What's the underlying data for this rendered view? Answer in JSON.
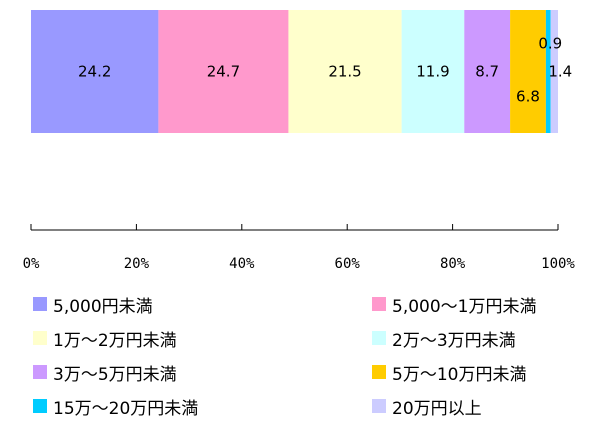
{
  "chart_data": {
    "type": "bar",
    "orientation": "horizontal-stacked-100",
    "series": [
      {
        "name": "5,000円未満",
        "value": 24.2,
        "color": "#9999FF"
      },
      {
        "name": "5,000～1万円未満",
        "value": 24.7,
        "color": "#FF99CC"
      },
      {
        "name": "1万～2万円未満",
        "value": 21.5,
        "color": "#FFFFCC"
      },
      {
        "name": "2万～3万円未満",
        "value": 11.9,
        "color": "#CCFFFF"
      },
      {
        "name": "3万～5万円未満",
        "value": 8.7,
        "color": "#CC99FF"
      },
      {
        "name": "5万～10万円未満",
        "value": 6.8,
        "color": "#FFCC00"
      },
      {
        "name": "15万～20万円未満",
        "value": 0.9,
        "color": "#00CCFF"
      },
      {
        "name": "20万円以上",
        "value": 1.4,
        "color": "#CCCCFF"
      }
    ],
    "data_labels": [
      "24.2",
      "24.7",
      "21.5",
      "11.9",
      "8.7",
      "6.8",
      "0.9",
      "1.4"
    ],
    "x_ticks": [
      "0%",
      "20%",
      "40%",
      "60%",
      "80%",
      "100%"
    ],
    "xlim": [
      0,
      100
    ],
    "legend_position": "bottom",
    "grid": false
  }
}
